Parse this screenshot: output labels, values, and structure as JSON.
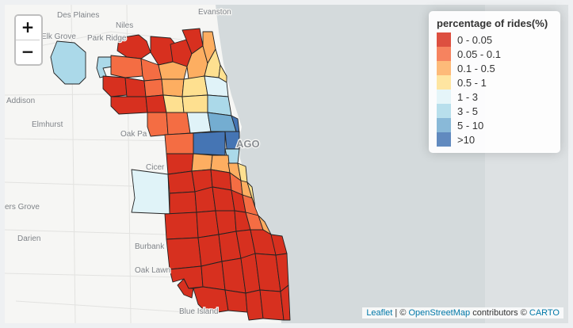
{
  "legend": {
    "title": "percentage of rides(%)",
    "items": [
      {
        "label": "0 - 0.05",
        "color": "#d7301f"
      },
      {
        "label": "0.05 - 0.1",
        "color": "#f46d43"
      },
      {
        "label": "0.1 - 0.5",
        "color": "#fdae61"
      },
      {
        "label": "0.5 - 1",
        "color": "#fee090"
      },
      {
        "label": "1 - 3",
        "color": "#e0f3f8"
      },
      {
        "label": "3 - 5",
        "color": "#abd9e9"
      },
      {
        "label": "5 - 10",
        "color": "#74add1"
      },
      {
        "label": ">10",
        "color": "#4575b4"
      }
    ]
  },
  "zoom": {
    "in_label": "+",
    "out_label": "−"
  },
  "attribution": {
    "leaflet": "Leaflet",
    "separator": " | © ",
    "osm": "OpenStreetMap",
    "contributors": " contributors © ",
    "carto": "CARTO"
  },
  "basemap_labels": {
    "des_plaines": "Des Plaines",
    "evanston": "Evanston",
    "niles": "Niles",
    "park_ridge": "Park Ridge",
    "elk_grove": "Elk Grove",
    "addison": "Addison",
    "elmhurst": "Elmhurst",
    "oak_park": "Oak Pa",
    "cicero": "Cicer",
    "chicago": "AGO",
    "downers_grove": "ers Grove",
    "darien": "Darien",
    "burbank": "Burbank",
    "oak_lawn": "Oak Lawn",
    "blue_island": "Blue Island"
  }
}
